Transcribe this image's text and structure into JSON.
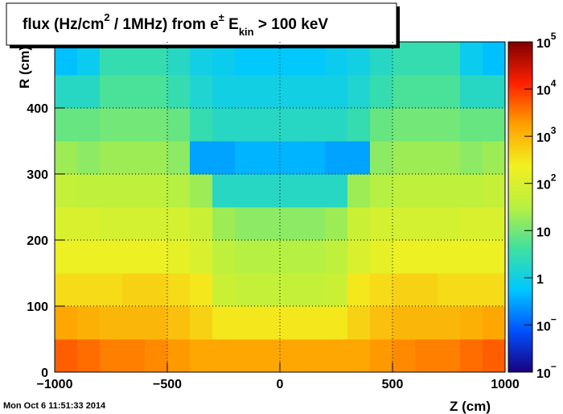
{
  "chart_data": {
    "type": "heatmap",
    "title_parts": [
      {
        "text": "flux (Hz/cm"
      },
      {
        "text": "2",
        "sup": true
      },
      {
        "text": " / 1MHz) from  "
      },
      {
        "text": "e"
      },
      {
        "text": "±",
        "sup": true
      },
      {
        "text": "  E"
      },
      {
        "text": "kin",
        "sub": true
      },
      {
        "text": "  > 100 keV"
      }
    ],
    "xlabel": "Z (cm)",
    "ylabel": "R (cm)",
    "footer": "Mon Oct  6 11:51:33 2014",
    "xlim": [
      -1000,
      1000
    ],
    "ylim": [
      0,
      500
    ],
    "xticks": [
      {
        "value": -1000,
        "label": "−1000"
      },
      {
        "value": -500,
        "label": "−500"
      },
      0,
      500,
      1000
    ],
    "yticks": [
      0,
      100,
      200,
      300,
      400
    ],
    "grid": true,
    "zlog": true,
    "zlim": [
      0.01,
      100000
    ],
    "zticks": [
      {
        "value": 100000,
        "label": "10",
        "sup": "5"
      },
      {
        "value": 10000,
        "label": "10",
        "sup": "4"
      },
      {
        "value": 1000,
        "label": "10",
        "sup": "3"
      },
      {
        "value": 100,
        "label": "10",
        "sup": "2"
      },
      {
        "value": 10,
        "label": "10"
      },
      {
        "value": 1,
        "label": "1"
      },
      {
        "value": 0.1,
        "label": "10",
        "sup": "−"
      },
      {
        "value": 0.01,
        "label": "10",
        "sup": "−"
      }
    ],
    "palette": [
      "#1a0080",
      "#0050ff",
      "#00c8ff",
      "#40e0a0",
      "#b8f040",
      "#f2f020",
      "#ffa000",
      "#ff2000",
      "#800000"
    ],
    "xbins": [
      -1000,
      -900,
      -800,
      -700,
      -600,
      -500,
      -400,
      -300,
      -200,
      -100,
      0,
      100,
      200,
      300,
      400,
      500,
      600,
      700,
      800,
      900,
      1000
    ],
    "ybins": [
      0,
      50,
      100,
      150,
      200,
      250,
      300,
      350,
      400,
      450,
      500
    ],
    "z": [
      [
        5000,
        4000,
        3000,
        3000,
        2500,
        2000,
        1500,
        1500,
        1500,
        1500,
        1500,
        1500,
        1500,
        1500,
        2000,
        2500,
        3000,
        3000,
        4000,
        5000
      ],
      [
        1500,
        1200,
        1000,
        1000,
        1000,
        800,
        500,
        300,
        300,
        300,
        300,
        300,
        300,
        500,
        800,
        1000,
        1000,
        1000,
        1200,
        1500
      ],
      [
        400,
        400,
        400,
        500,
        500,
        400,
        300,
        60,
        50,
        50,
        50,
        50,
        60,
        300,
        400,
        500,
        500,
        400,
        400,
        400
      ],
      [
        200,
        200,
        200,
        200,
        200,
        150,
        100,
        40,
        30,
        30,
        30,
        30,
        40,
        100,
        150,
        200,
        200,
        200,
        200,
        200
      ],
      [
        100,
        100,
        80,
        80,
        80,
        80,
        60,
        20,
        15,
        15,
        15,
        15,
        20,
        60,
        80,
        80,
        80,
        80,
        100,
        100
      ],
      [
        50,
        40,
        40,
        40,
        40,
        30,
        20,
        2,
        2,
        2,
        2,
        2,
        2,
        20,
        30,
        40,
        40,
        40,
        40,
        50
      ],
      [
        20,
        15,
        20,
        20,
        20,
        15,
        0.3,
        0.3,
        0.4,
        0.4,
        0.4,
        0.4,
        0.3,
        0.3,
        15,
        20,
        20,
        20,
        15,
        20
      ],
      [
        8,
        8,
        10,
        10,
        10,
        8,
        3,
        2,
        2,
        2,
        2,
        2,
        2,
        3,
        8,
        10,
        10,
        10,
        8,
        8
      ],
      [
        2,
        2,
        5,
        5,
        5,
        3,
        1.5,
        1,
        1,
        1,
        1,
        1,
        1,
        1.5,
        3,
        5,
        5,
        5,
        2,
        2
      ],
      [
        0.5,
        0.8,
        3,
        3,
        3,
        2,
        1,
        0.8,
        0.6,
        0.6,
        0.6,
        0.6,
        0.8,
        1,
        2,
        3,
        3,
        3,
        0.8,
        0.5
      ]
    ]
  }
}
